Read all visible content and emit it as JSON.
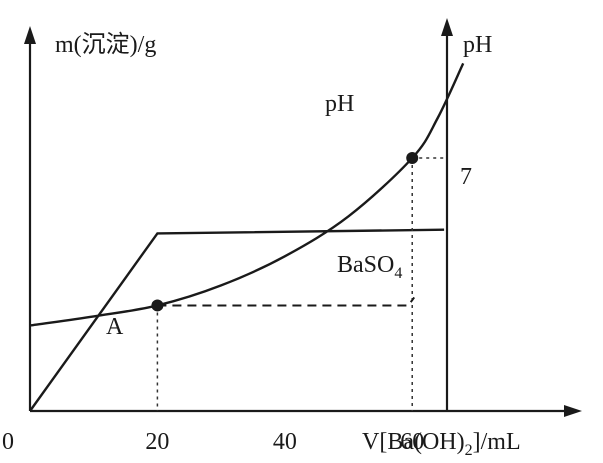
{
  "chart_data": {
    "type": "line",
    "xlabel": "V[Ba(OH)",
    "xlabel_sub": "2",
    "xlabel_tail": "]/mL",
    "ylabel_left": "m(沉淀)/g",
    "ylabel_right": "pH",
    "origin_label": "0",
    "x_ticks": [
      "20",
      "40",
      "60"
    ],
    "x_tick_values": [
      20,
      40,
      60
    ],
    "xlim": [
      0,
      81
    ],
    "right_axis_tick_label": "7",
    "right_axis_tick_value": 7,
    "series": [
      {
        "name": "BaSO4",
        "label_main": "BaSO",
        "label_sub": "4",
        "kind": "precipitate",
        "x": [
          0,
          20,
          65
        ],
        "y_rel": [
          0,
          0.96,
          0.98
        ]
      },
      {
        "name": "pH",
        "label": "pH",
        "kind": "ph",
        "x": [
          0,
          10,
          20,
          30,
          40,
          50,
          60,
          64,
          68
        ],
        "y_rel": [
          0.47,
          0.52,
          0.58,
          0.69,
          0.85,
          1.07,
          1.39,
          1.61,
          1.91
        ]
      }
    ],
    "points": [
      {
        "name": "A",
        "label": "A",
        "x": 20,
        "on_series": "pH"
      },
      {
        "name": "ph7",
        "label": "",
        "x": 60,
        "on_series": "pH"
      }
    ],
    "dashed_link": {
      "from_x": 20,
      "to_x": 60,
      "style": "dashed-horizontal-connector"
    },
    "grid": false,
    "legend": "none"
  }
}
